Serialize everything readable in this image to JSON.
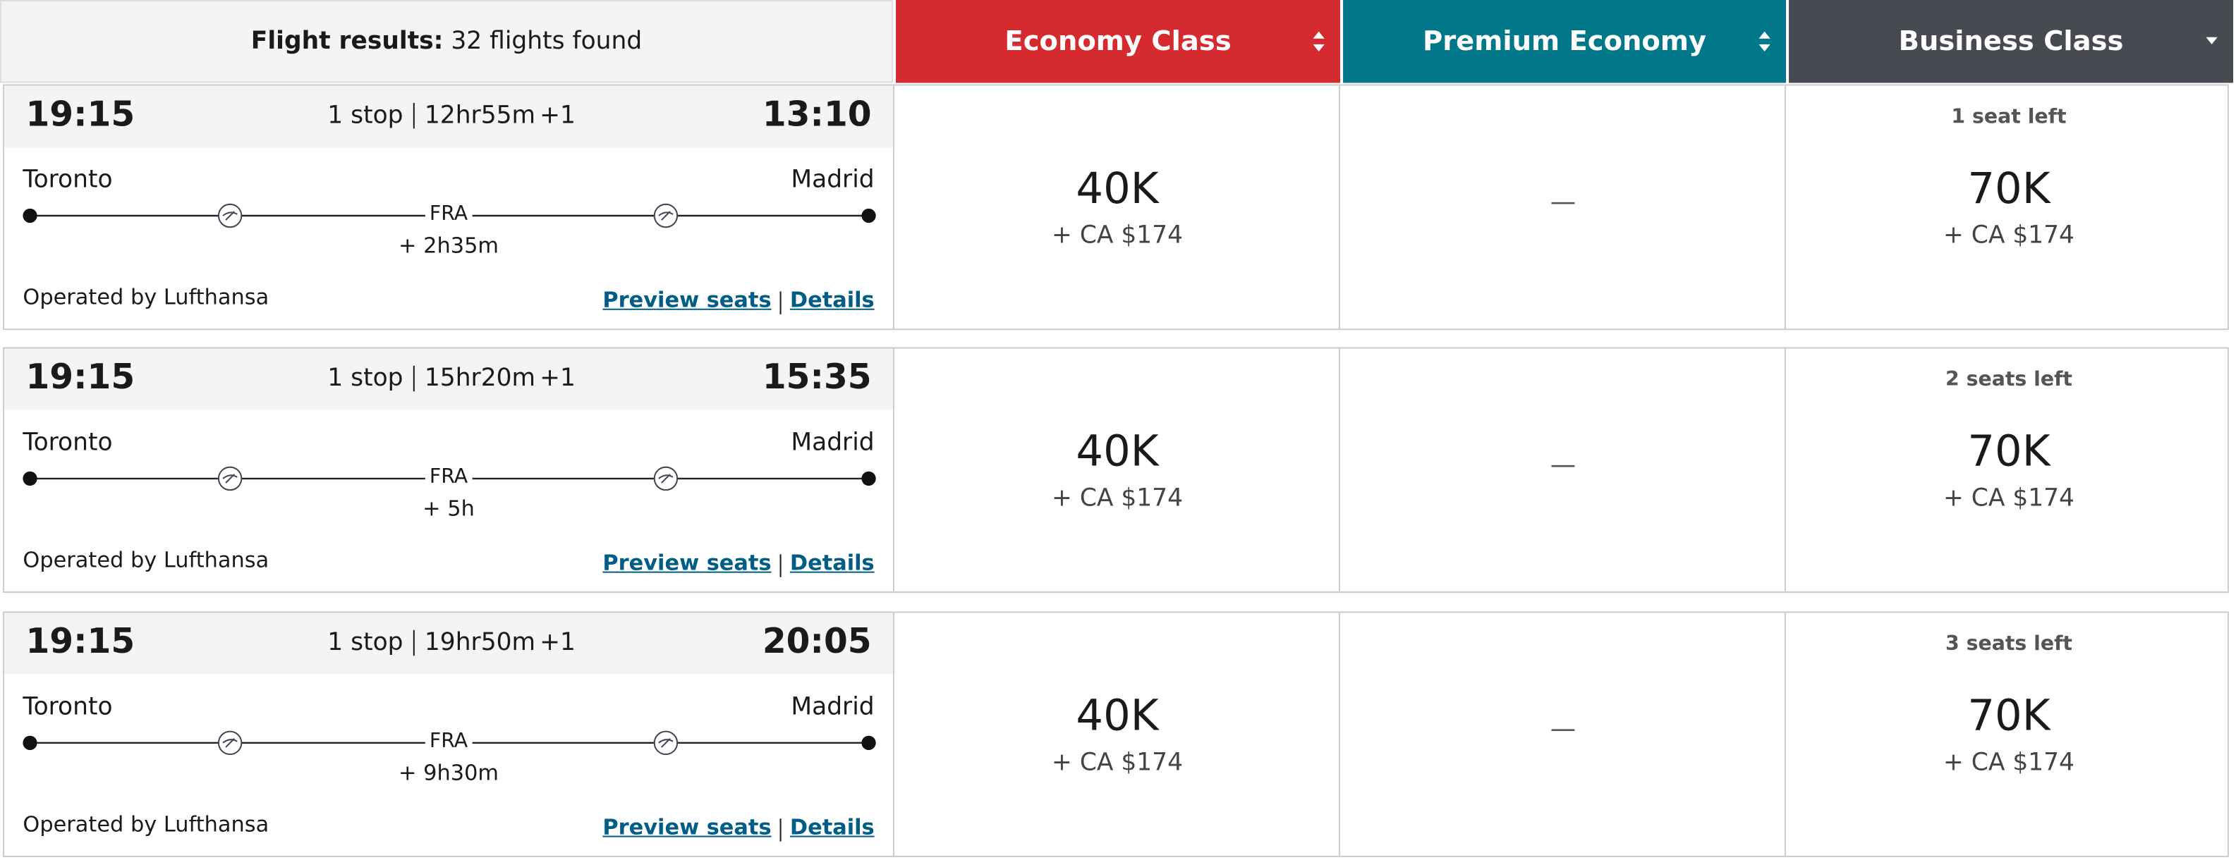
{
  "header": {
    "label": "Flight results:",
    "count": "32 flights found"
  },
  "columns": [
    "Economy Class",
    "Premium Economy",
    "Business Class"
  ],
  "flights": [
    {
      "depart": "19:15",
      "stops": "1 stop",
      "duration": "12hr55m",
      "day": "+1",
      "arrive": "13:10",
      "origin": "Toronto",
      "destination": "Madrid",
      "via": "FRA",
      "layover": "+ 2h35m",
      "operator": "Operated by Lufthansa",
      "preview": "Preview seats",
      "details": "Details",
      "economy": {
        "points": "40K",
        "cash": "+ CA $174"
      },
      "premium": "—",
      "business": {
        "seats": "1 seat left",
        "points": "70K",
        "cash": "+ CA $174"
      }
    },
    {
      "depart": "19:15",
      "stops": "1 stop",
      "duration": "15hr20m",
      "day": "+1",
      "arrive": "15:35",
      "origin": "Toronto",
      "destination": "Madrid",
      "via": "FRA",
      "layover": "+ 5h",
      "operator": "Operated by Lufthansa",
      "preview": "Preview seats",
      "details": "Details",
      "economy": {
        "points": "40K",
        "cash": "+ CA $174"
      },
      "premium": "—",
      "business": {
        "seats": "2 seats left",
        "points": "70K",
        "cash": "+ CA $174"
      }
    },
    {
      "depart": "19:15",
      "stops": "1 stop",
      "duration": "19hr50m",
      "day": "+1",
      "arrive": "20:05",
      "origin": "Toronto",
      "destination": "Madrid",
      "via": "FRA",
      "layover": "+ 9h30m",
      "operator": "Operated by Lufthansa",
      "preview": "Preview seats",
      "details": "Details",
      "economy": {
        "points": "40K",
        "cash": "+ CA $174"
      },
      "premium": "—",
      "business": {
        "seats": "3 seats left",
        "points": "70K",
        "cash": "+ CA $174"
      }
    }
  ]
}
